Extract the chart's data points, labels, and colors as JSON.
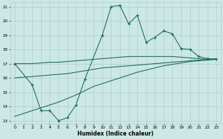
{
  "xlabel": "Humidex (Indice chaleur)",
  "bg_color": "#cce8e4",
  "grid_color": "#aacccc",
  "line_color": "#1a6b60",
  "xlim": [
    -0.5,
    23.5
  ],
  "ylim": [
    12.8,
    21.3
  ],
  "yticks": [
    13,
    14,
    15,
    16,
    17,
    18,
    19,
    20,
    21
  ],
  "xticks": [
    0,
    1,
    2,
    3,
    4,
    5,
    6,
    7,
    8,
    9,
    10,
    11,
    12,
    13,
    14,
    15,
    16,
    17,
    18,
    19,
    20,
    21,
    22,
    23
  ],
  "line1_x": [
    0,
    1,
    2,
    3,
    4,
    5,
    6,
    7,
    8,
    9,
    10,
    11,
    12,
    13,
    14,
    15,
    16,
    17,
    18,
    19,
    20,
    21,
    22,
    23
  ],
  "line1_y": [
    17.0,
    17.0,
    17.0,
    17.05,
    17.1,
    17.1,
    17.15,
    17.2,
    17.25,
    17.3,
    17.35,
    17.4,
    17.45,
    17.5,
    17.5,
    17.5,
    17.5,
    17.5,
    17.5,
    17.45,
    17.4,
    17.35,
    17.3,
    17.3
  ],
  "line2_x": [
    0,
    1,
    2,
    3,
    4,
    5,
    6,
    7,
    8,
    9,
    10,
    11,
    12,
    13,
    14,
    15,
    16,
    17,
    18,
    19,
    20,
    21,
    22,
    23
  ],
  "line2_y": [
    16.0,
    16.05,
    16.1,
    16.15,
    16.2,
    16.25,
    16.3,
    16.4,
    16.5,
    16.6,
    16.7,
    16.75,
    16.8,
    16.85,
    16.9,
    16.95,
    17.0,
    17.05,
    17.1,
    17.15,
    17.2,
    17.25,
    17.3,
    17.35
  ],
  "line3_x": [
    0,
    2,
    3,
    4,
    5,
    6,
    7,
    8,
    10,
    11,
    12,
    13,
    14,
    15,
    16,
    17,
    18,
    19,
    20,
    21,
    22,
    23
  ],
  "line3_y": [
    17.0,
    15.5,
    13.7,
    13.7,
    13.0,
    13.2,
    14.1,
    15.9,
    19.0,
    21.0,
    21.1,
    19.8,
    20.4,
    18.5,
    18.85,
    19.3,
    19.1,
    18.05,
    18.0,
    17.5,
    17.35,
    17.3
  ],
  "line4_x": [
    0,
    1,
    2,
    3,
    4,
    5,
    6,
    7,
    8,
    9,
    10,
    11,
    12,
    13,
    14,
    15,
    16,
    17,
    18,
    19,
    20,
    21,
    22,
    23
  ],
  "line4_y": [
    13.3,
    13.5,
    13.7,
    13.9,
    14.1,
    14.3,
    14.55,
    14.8,
    15.1,
    15.4,
    15.6,
    15.8,
    16.0,
    16.2,
    16.4,
    16.55,
    16.7,
    16.85,
    16.95,
    17.05,
    17.15,
    17.2,
    17.25,
    17.3
  ]
}
